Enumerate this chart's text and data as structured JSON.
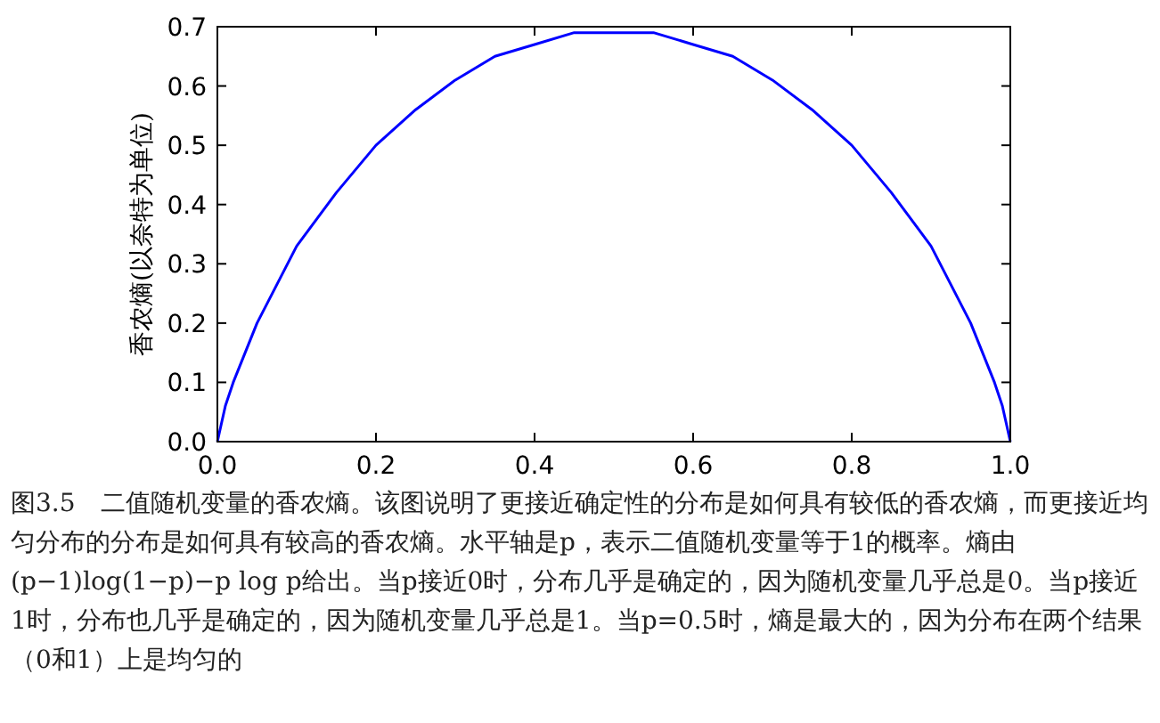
{
  "chart_data": {
    "type": "line",
    "ylabel": "香农熵(以奈特为单位)",
    "x": [
      0,
      0.005,
      0.01,
      0.02,
      0.05,
      0.1,
      0.15,
      0.2,
      0.25,
      0.3,
      0.35,
      0.4,
      0.45,
      0.5,
      0.55,
      0.6,
      0.65,
      0.7,
      0.75,
      0.8,
      0.85,
      0.9,
      0.95,
      0.98,
      0.99,
      0.995,
      1
    ],
    "series": [
      {
        "color": "#0000ff",
        "values": [
          0,
          0.03,
          0.06,
          0.1,
          0.2,
          0.33,
          0.42,
          0.5,
          0.56,
          0.61,
          0.65,
          0.67,
          0.69,
          0.69,
          0.69,
          0.67,
          0.65,
          0.61,
          0.56,
          0.5,
          0.42,
          0.33,
          0.2,
          0.1,
          0.06,
          0.03,
          0
        ]
      }
    ],
    "xlim": [
      0,
      1
    ],
    "xticks": [
      {
        "value": 0,
        "label": "0.0"
      },
      {
        "value": 0.2,
        "label": "0.2"
      },
      {
        "value": 0.4,
        "label": "0.4"
      },
      {
        "value": 0.6,
        "label": "0.6"
      },
      {
        "value": 0.8,
        "label": "0.8"
      },
      {
        "value": 1,
        "label": "1.0"
      }
    ],
    "ylim": [
      0,
      0.7
    ],
    "yticks": [
      {
        "value": 0,
        "label": "0.0"
      },
      {
        "value": 0.1,
        "label": "0.1"
      },
      {
        "value": 0.2,
        "label": "0.2"
      },
      {
        "value": 0.3,
        "label": "0.3"
      },
      {
        "value": 0.4,
        "label": "0.4"
      },
      {
        "value": 0.5,
        "label": "0.5"
      },
      {
        "value": 0.6,
        "label": "0.6"
      },
      {
        "value": 0.7,
        "label": "0.7"
      }
    ],
    "marker": "none",
    "line_style": "solid",
    "annotations": [
      "图3.5　二值随机变量的香农熵。该图说明了更接近确定性的分布是如何具有较低的香农熵，而更接近均匀分布的分布是如何具有较高的香农熵。水平轴是p，表示二值随机变量等于1的概率。熵由(p−1)log(1−p)−p log p给出。当p接近0时，分布几乎是确定的，因为随机变量几乎总是0。当p接近1时，分布也几乎是确定的，因为随机变量几乎总是1。当p=0.5时，熵是最大的，因为分布在两个结果（0和1）上是均匀的"
    ]
  }
}
